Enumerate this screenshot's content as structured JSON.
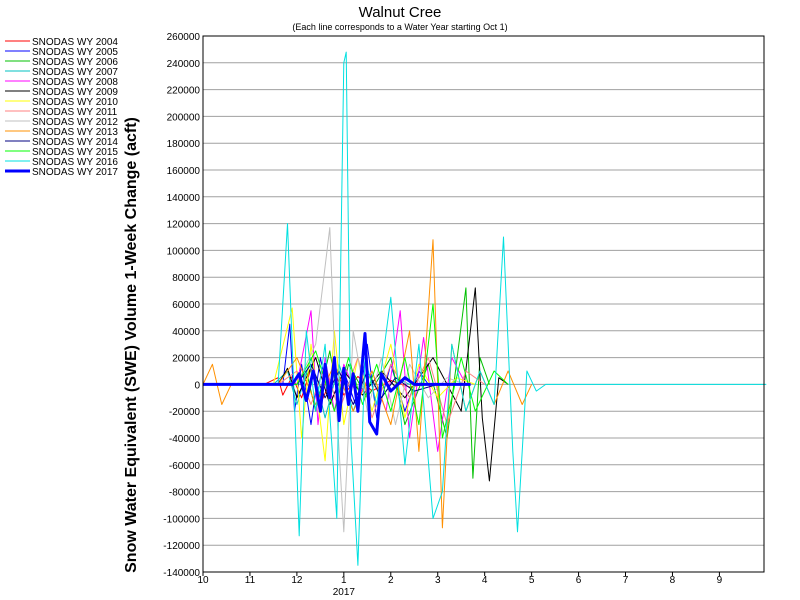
{
  "chart_data": {
    "type": "line",
    "title": "Walnut Cree",
    "subtitle": "(Each line corresponds to a Water Year starting Oct 1)",
    "ylabel": "Snow Water Equivalent (SWE) Volume 1-Week Change (acft)",
    "xlabel": "",
    "x_tick_labels": [
      "10",
      "11",
      "12",
      "1",
      "2",
      "3",
      "4",
      "5",
      "6",
      "7",
      "8",
      "9"
    ],
    "x_year_label": "2017",
    "x_year_under": "1",
    "xlim": [
      10,
      21.95
    ],
    "ylim": [
      -140000,
      260000
    ],
    "y_ticks": [
      -140000,
      -120000,
      -100000,
      -80000,
      -60000,
      -40000,
      -20000,
      0,
      20000,
      40000,
      60000,
      80000,
      100000,
      120000,
      140000,
      160000,
      180000,
      200000,
      220000,
      240000,
      260000
    ],
    "grid": true,
    "legend_position": "left",
    "series": [
      {
        "name": "SNODAS WY 2004",
        "color": "#ff0000",
        "width": 1,
        "points": [
          [
            10.5,
            0
          ],
          [
            11.3,
            0
          ],
          [
            11.6,
            5000
          ],
          [
            11.7,
            -8000
          ],
          [
            11.9,
            6000
          ],
          [
            12.1,
            -10000
          ],
          [
            12.3,
            12000
          ],
          [
            12.5,
            -15000
          ],
          [
            12.8,
            10000
          ],
          [
            13.0,
            -8000
          ],
          [
            13.3,
            6000
          ],
          [
            13.6,
            -5000
          ],
          [
            14.0,
            3000
          ],
          [
            14.4,
            -2000
          ],
          [
            14.7,
            0
          ]
        ]
      },
      {
        "name": "SNODAS WY 2005",
        "color": "#0000ff",
        "width": 1,
        "points": [
          [
            11.0,
            0
          ],
          [
            11.7,
            0
          ],
          [
            11.85,
            45000
          ],
          [
            11.95,
            -20000
          ],
          [
            12.1,
            15000
          ],
          [
            12.3,
            -30000
          ],
          [
            12.5,
            20000
          ],
          [
            12.7,
            -15000
          ],
          [
            13.0,
            10000
          ],
          [
            13.3,
            -20000
          ],
          [
            13.5,
            30000
          ],
          [
            13.7,
            -25000
          ],
          [
            14.0,
            15000
          ],
          [
            14.3,
            -20000
          ],
          [
            14.6,
            10000
          ],
          [
            14.8,
            0
          ]
        ]
      },
      {
        "name": "SNODAS WY 2006",
        "color": "#00c000",
        "width": 1,
        "points": [
          [
            11.5,
            0
          ],
          [
            12.0,
            0
          ],
          [
            12.2,
            10000
          ],
          [
            12.4,
            -20000
          ],
          [
            12.7,
            25000
          ],
          [
            12.9,
            -15000
          ],
          [
            13.1,
            15000
          ],
          [
            13.5,
            -10000
          ],
          [
            14.0,
            20000
          ],
          [
            14.3,
            -30000
          ],
          [
            14.8,
            15000
          ],
          [
            15.2,
            -40000
          ],
          [
            15.6,
            72000
          ],
          [
            15.75,
            -70000
          ],
          [
            15.9,
            20000
          ],
          [
            16.1,
            0
          ]
        ]
      },
      {
        "name": "SNODAS WY 2007",
        "color": "#00c0c0",
        "width": 1,
        "points": [
          [
            11.5,
            0
          ],
          [
            11.8,
            10000
          ],
          [
            12.0,
            -15000
          ],
          [
            12.3,
            20000
          ],
          [
            12.6,
            -25000
          ],
          [
            12.9,
            15000
          ],
          [
            13.2,
            -20000
          ],
          [
            13.5,
            10000
          ],
          [
            13.8,
            -10000
          ],
          [
            14.1,
            5000
          ],
          [
            14.4,
            0
          ]
        ]
      },
      {
        "name": "SNODAS WY 2008",
        "color": "#ff00ff",
        "width": 1,
        "points": [
          [
            11.5,
            0
          ],
          [
            12.0,
            0
          ],
          [
            12.3,
            55000
          ],
          [
            12.45,
            -30000
          ],
          [
            12.6,
            20000
          ],
          [
            12.8,
            -20000
          ],
          [
            13.0,
            15000
          ],
          [
            13.3,
            -10000
          ],
          [
            13.6,
            10000
          ],
          [
            13.9,
            -20000
          ],
          [
            14.2,
            55000
          ],
          [
            14.4,
            -40000
          ],
          [
            14.7,
            35000
          ],
          [
            15.0,
            -50000
          ],
          [
            15.3,
            20000
          ],
          [
            15.6,
            0
          ]
        ]
      },
      {
        "name": "SNODAS WY 2009",
        "color": "#000000",
        "width": 1,
        "points": [
          [
            11.0,
            0
          ],
          [
            11.6,
            0
          ],
          [
            11.8,
            12000
          ],
          [
            12.0,
            -10000
          ],
          [
            12.4,
            20000
          ],
          [
            12.7,
            -15000
          ],
          [
            13.0,
            10000
          ],
          [
            13.4,
            -8000
          ],
          [
            13.8,
            10000
          ],
          [
            14.3,
            -10000
          ],
          [
            14.9,
            20000
          ],
          [
            15.5,
            -20000
          ],
          [
            15.8,
            72000
          ],
          [
            15.95,
            -25000
          ],
          [
            16.1,
            -72000
          ],
          [
            16.3,
            5000
          ],
          [
            16.5,
            0
          ]
        ]
      },
      {
        "name": "SNODAS WY 2010",
        "color": "#ffff00",
        "width": 1,
        "points": [
          [
            11.0,
            0
          ],
          [
            11.5,
            0
          ],
          [
            11.9,
            57000
          ],
          [
            12.1,
            -40000
          ],
          [
            12.3,
            30000
          ],
          [
            12.6,
            -57000
          ],
          [
            12.8,
            40000
          ],
          [
            13.0,
            -30000
          ],
          [
            13.3,
            20000
          ],
          [
            13.6,
            -20000
          ],
          [
            14.0,
            30000
          ],
          [
            14.3,
            -25000
          ],
          [
            14.6,
            15000
          ],
          [
            15.0,
            -10000
          ],
          [
            15.4,
            5000
          ],
          [
            15.8,
            0
          ]
        ]
      },
      {
        "name": "SNODAS WY 2011",
        "color": "#ff8080",
        "width": 1,
        "points": [
          [
            11.0,
            0
          ],
          [
            11.6,
            0
          ],
          [
            12.0,
            10000
          ],
          [
            12.3,
            -15000
          ],
          [
            12.6,
            15000
          ],
          [
            12.9,
            -20000
          ],
          [
            13.3,
            20000
          ],
          [
            13.6,
            -25000
          ],
          [
            14.0,
            15000
          ],
          [
            14.4,
            -10000
          ],
          [
            14.8,
            20000
          ],
          [
            15.2,
            -30000
          ],
          [
            15.6,
            10000
          ],
          [
            16.0,
            0
          ]
        ]
      },
      {
        "name": "SNODAS WY 2012",
        "color": "#c0c0c0",
        "width": 1,
        "points": [
          [
            11.5,
            0
          ],
          [
            12.0,
            0
          ],
          [
            12.4,
            30000
          ],
          [
            12.7,
            117000
          ],
          [
            12.85,
            -20000
          ],
          [
            13.0,
            -110000
          ],
          [
            13.2,
            40000
          ],
          [
            13.5,
            -20000
          ],
          [
            13.8,
            20000
          ],
          [
            14.1,
            -30000
          ],
          [
            14.4,
            15000
          ],
          [
            14.8,
            -10000
          ],
          [
            15.2,
            5000
          ],
          [
            15.6,
            0
          ]
        ]
      },
      {
        "name": "SNODAS WY 2013",
        "color": "#ff9000",
        "width": 1,
        "points": [
          [
            10.0,
            0
          ],
          [
            10.2,
            15000
          ],
          [
            10.4,
            -15000
          ],
          [
            10.6,
            0
          ],
          [
            11.6,
            0
          ],
          [
            12.0,
            20000
          ],
          [
            12.4,
            -15000
          ],
          [
            12.8,
            15000
          ],
          [
            13.2,
            -20000
          ],
          [
            13.6,
            10000
          ],
          [
            14.0,
            -30000
          ],
          [
            14.4,
            40000
          ],
          [
            14.6,
            -50000
          ],
          [
            14.9,
            108000
          ],
          [
            15.1,
            -107000
          ],
          [
            15.3,
            30000
          ],
          [
            15.6,
            -20000
          ],
          [
            15.9,
            10000
          ],
          [
            16.2,
            -15000
          ],
          [
            16.5,
            10000
          ],
          [
            16.8,
            -15000
          ],
          [
            17.0,
            0
          ]
        ]
      },
      {
        "name": "SNODAS WY 2014",
        "color": "#000080",
        "width": 1,
        "points": [
          [
            11.5,
            0
          ],
          [
            12.0,
            0
          ],
          [
            12.3,
            15000
          ],
          [
            12.6,
            -10000
          ],
          [
            12.9,
            10000
          ],
          [
            13.2,
            -15000
          ],
          [
            13.5,
            10000
          ],
          [
            13.8,
            -10000
          ],
          [
            14.1,
            5000
          ],
          [
            14.5,
            -5000
          ],
          [
            15.0,
            0
          ]
        ]
      },
      {
        "name": "SNODAS WY 2015",
        "color": "#00ff00",
        "width": 1,
        "points": [
          [
            11.5,
            0
          ],
          [
            12.0,
            0
          ],
          [
            12.4,
            25000
          ],
          [
            12.8,
            -20000
          ],
          [
            13.1,
            20000
          ],
          [
            13.4,
            -15000
          ],
          [
            13.7,
            15000
          ],
          [
            14.0,
            -20000
          ],
          [
            14.3,
            20000
          ],
          [
            14.6,
            -30000
          ],
          [
            14.9,
            60000
          ],
          [
            15.1,
            -40000
          ],
          [
            15.5,
            20000
          ],
          [
            15.8,
            -20000
          ],
          [
            16.2,
            10000
          ],
          [
            16.5,
            0
          ]
        ]
      },
      {
        "name": "SNODAS WY 2016",
        "color": "#00e0e0",
        "width": 1,
        "points": [
          [
            11.0,
            0
          ],
          [
            11.6,
            0
          ],
          [
            11.8,
            120000
          ],
          [
            11.95,
            -15000
          ],
          [
            12.05,
            -113000
          ],
          [
            12.2,
            40000
          ],
          [
            12.4,
            -20000
          ],
          [
            12.6,
            30000
          ],
          [
            12.85,
            -100000
          ],
          [
            13.0,
            240000
          ],
          [
            13.05,
            248000
          ],
          [
            13.15,
            -40000
          ],
          [
            13.3,
            -135000
          ],
          [
            13.45,
            20000
          ],
          [
            13.7,
            -15000
          ],
          [
            14.0,
            65000
          ],
          [
            14.3,
            -60000
          ],
          [
            14.6,
            30000
          ],
          [
            14.9,
            -100000
          ],
          [
            15.1,
            -80000
          ],
          [
            15.3,
            30000
          ],
          [
            15.6,
            -20000
          ],
          [
            15.9,
            10000
          ],
          [
            16.2,
            -15000
          ],
          [
            16.4,
            110000
          ],
          [
            16.6,
            -50000
          ],
          [
            16.7,
            -110000
          ],
          [
            16.9,
            10000
          ],
          [
            17.1,
            -5000
          ],
          [
            17.3,
            0
          ],
          [
            22.0,
            0
          ]
        ]
      },
      {
        "name": "SNODAS WY 2017",
        "color": "#0000ff",
        "width": 3,
        "points": [
          [
            10.0,
            0
          ],
          [
            11.9,
            0
          ],
          [
            12.05,
            8000
          ],
          [
            12.2,
            -12000
          ],
          [
            12.35,
            10000
          ],
          [
            12.5,
            -20000
          ],
          [
            12.6,
            15000
          ],
          [
            12.7,
            -10000
          ],
          [
            12.8,
            20000
          ],
          [
            12.9,
            -27000
          ],
          [
            13.0,
            12000
          ],
          [
            13.1,
            -15000
          ],
          [
            13.2,
            8000
          ],
          [
            13.3,
            -20000
          ],
          [
            13.45,
            38000
          ],
          [
            13.55,
            -28000
          ],
          [
            13.7,
            -37000
          ],
          [
            13.8,
            8000
          ],
          [
            14.0,
            -5000
          ],
          [
            14.3,
            5000
          ],
          [
            14.5,
            0
          ],
          [
            15.7,
            0
          ]
        ]
      }
    ]
  }
}
